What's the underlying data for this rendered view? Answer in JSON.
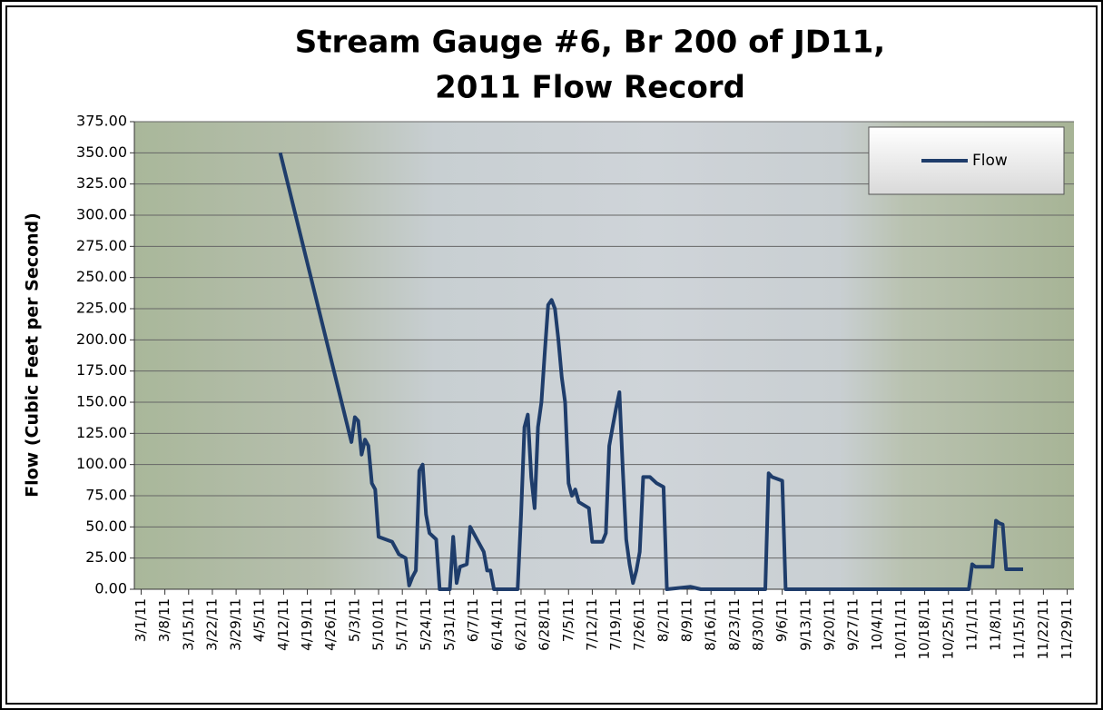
{
  "chart_data": {
    "type": "line",
    "title": [
      "Stream Gauge #6, Br 200 of JD11,",
      "2011 Flow Record"
    ],
    "y_label": "Flow (Cubic Feet per Second)",
    "legend": "top-right",
    "grid": true,
    "xlim": [
      "2/27/11",
      "12/1/11"
    ],
    "ylim": [
      0,
      375
    ],
    "yticks": [
      {
        "value": 0,
        "label": "0.00"
      },
      {
        "value": 25,
        "label": "25.00"
      },
      {
        "value": 50,
        "label": "50.00"
      },
      {
        "value": 75,
        "label": "75.00"
      },
      {
        "value": 100,
        "label": "100.00"
      },
      {
        "value": 125,
        "label": "125.00"
      },
      {
        "value": 150,
        "label": "150.00"
      },
      {
        "value": 175,
        "label": "175.00"
      },
      {
        "value": 200,
        "label": "200.00"
      },
      {
        "value": 225,
        "label": "225.00"
      },
      {
        "value": 250,
        "label": "250.00"
      },
      {
        "value": 275,
        "label": "275.00"
      },
      {
        "value": 300,
        "label": "300.00"
      },
      {
        "value": 325,
        "label": "325.00"
      },
      {
        "value": 350,
        "label": "350.00"
      },
      {
        "value": 375,
        "label": "375.00"
      }
    ],
    "xticks": [
      "3/1/11",
      "3/8/11",
      "3/15/11",
      "3/22/11",
      "3/29/11",
      "4/5/11",
      "4/12/11",
      "4/19/11",
      "4/26/11",
      "5/3/11",
      "5/10/11",
      "5/17/11",
      "5/24/11",
      "5/31/11",
      "6/7/11",
      "6/14/11",
      "6/21/11",
      "6/28/11",
      "7/5/11",
      "7/12/11",
      "7/19/11",
      "7/26/11",
      "8/2/11",
      "8/9/11",
      "8/16/11",
      "8/23/11",
      "8/30/11",
      "9/6/11",
      "9/13/11",
      "9/20/11",
      "9/27/11",
      "10/4/11",
      "10/11/11",
      "10/18/11",
      "10/25/11",
      "11/1/11",
      "11/8/11",
      "11/15/11",
      "11/22/11",
      "11/29/11"
    ],
    "x": [
      "4/11/11",
      "5/2/11",
      "5/3/11",
      "5/4/11",
      "5/5/11",
      "5/6/11",
      "5/7/11",
      "5/8/11",
      "5/9/11",
      "5/10/11",
      "5/14/11",
      "5/16/11",
      "5/18/11",
      "5/19/11",
      "5/20/11",
      "5/21/11",
      "5/22/11",
      "5/23/11",
      "5/24/11",
      "5/25/11",
      "5/27/11",
      "5/28/11",
      "5/31/11",
      "6/1/11",
      "6/2/11",
      "6/3/11",
      "6/5/11",
      "6/6/11",
      "6/8/11",
      "6/10/11",
      "6/11/11",
      "6/12/11",
      "6/13/11",
      "6/20/11",
      "6/21/11",
      "6/22/11",
      "6/23/11",
      "6/24/11",
      "6/25/11",
      "6/26/11",
      "6/27/11",
      "6/28/11",
      "6/29/11",
      "6/30/11",
      "7/1/11",
      "7/2/11",
      "7/3/11",
      "7/4/11",
      "7/5/11",
      "7/6/11",
      "7/7/11",
      "7/8/11",
      "7/11/11",
      "7/12/11",
      "7/15/11",
      "7/16/11",
      "7/17/11",
      "7/18/11",
      "7/19/11",
      "7/20/11",
      "7/21/11",
      "7/22/11",
      "7/23/11",
      "7/24/11",
      "7/25/11",
      "7/26/11",
      "7/27/11",
      "7/29/11",
      "7/31/11",
      "8/2/11",
      "8/3/11",
      "8/10/11",
      "8/13/11",
      "9/1/11",
      "9/2/11",
      "9/3/11",
      "9/6/11",
      "9/7/11",
      "10/31/11",
      "11/1/11",
      "11/2/11",
      "11/7/11",
      "11/8/11",
      "11/9/11",
      "11/10/11",
      "11/11/11",
      "11/16/11"
    ],
    "series": [
      {
        "name": "Flow",
        "color": "#1f3d6b",
        "values": [
          350,
          118,
          138,
          135,
          108,
          120,
          115,
          85,
          80,
          42,
          38,
          28,
          25,
          3,
          10,
          15,
          95,
          100,
          60,
          45,
          40,
          0,
          0,
          42,
          5,
          18,
          20,
          50,
          40,
          30,
          15,
          15,
          0,
          0,
          60,
          130,
          140,
          90,
          65,
          130,
          150,
          190,
          228,
          232,
          225,
          200,
          170,
          150,
          85,
          75,
          80,
          70,
          65,
          38,
          38,
          45,
          115,
          130,
          145,
          158,
          95,
          40,
          20,
          5,
          15,
          30,
          90,
          90,
          85,
          82,
          0,
          2,
          0,
          0,
          93,
          90,
          87,
          0,
          0,
          20,
          18,
          18,
          55,
          53,
          52,
          16,
          16
        ]
      }
    ]
  }
}
